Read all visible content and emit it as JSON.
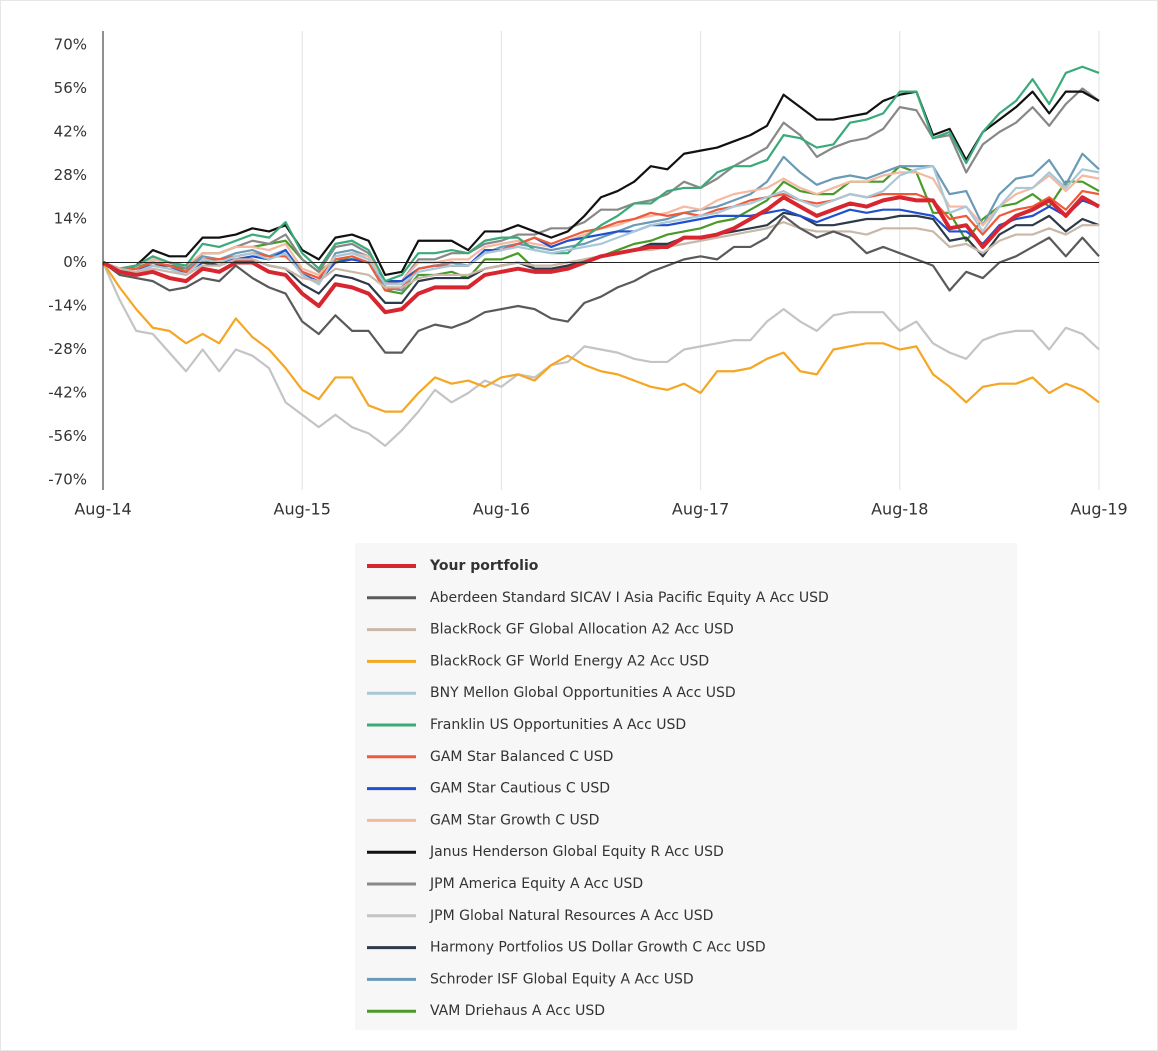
{
  "chart_data": {
    "type": "line",
    "categories": [
      "Aug-14",
      null,
      null,
      null,
      null,
      null,
      null,
      null,
      null,
      null,
      null,
      null,
      "Aug-15",
      null,
      null,
      null,
      null,
      null,
      null,
      null,
      null,
      null,
      null,
      null,
      "Aug-16",
      null,
      null,
      null,
      null,
      null,
      null,
      null,
      null,
      null,
      null,
      null,
      "Aug-17",
      null,
      null,
      null,
      null,
      null,
      null,
      null,
      null,
      null,
      null,
      null,
      "Aug-18",
      null,
      null,
      null,
      null,
      null,
      null,
      null,
      null,
      null,
      null,
      null,
      "Aug-19"
    ],
    "ylim": [
      -70,
      70
    ],
    "yticks": [
      {
        "value": -70,
        "label": "-70%"
      },
      {
        "value": -56,
        "label": "-56%"
      },
      {
        "value": -42,
        "label": "-42%"
      },
      {
        "value": -28,
        "label": "-28%"
      },
      {
        "value": -14,
        "label": "-14%"
      },
      {
        "value": 0,
        "label": "0%"
      },
      {
        "value": 14,
        "label": "14%"
      },
      {
        "value": 28,
        "label": "28%"
      },
      {
        "value": 42,
        "label": "42%"
      },
      {
        "value": 56,
        "label": "56%"
      },
      {
        "value": 70,
        "label": "70%"
      }
    ],
    "grid": true,
    "series": [
      {
        "name": "Your portfolio",
        "color": "#d7262f",
        "values": [
          0,
          -3,
          -4,
          -3,
          -5,
          -6,
          -2,
          -3,
          0,
          0,
          -3,
          -4,
          -10,
          -14,
          -7,
          -8,
          -10,
          -16,
          -15,
          -10,
          -8,
          -8,
          -8,
          -4,
          -3,
          -2,
          -3,
          -3,
          -2,
          0,
          2,
          3,
          4,
          5,
          5,
          8,
          8,
          9,
          11,
          14,
          17,
          21,
          18,
          15,
          17,
          19,
          18,
          20,
          21,
          20,
          20,
          11,
          12,
          5,
          11,
          15,
          17,
          20,
          15,
          21,
          18
        ]
      },
      {
        "name": "Aberdeen Standard SICAV I Asia Pacific Equity A Acc USD",
        "color": "#5a5a5a",
        "values": [
          0,
          -4,
          -5,
          -6,
          -9,
          -8,
          -5,
          -6,
          -1,
          -5,
          -8,
          -10,
          -19,
          -23,
          -17,
          -22,
          -22,
          -29,
          -29,
          -22,
          -20,
          -21,
          -19,
          -16,
          -15,
          -14,
          -15,
          -18,
          -19,
          -13,
          -11,
          -8,
          -6,
          -3,
          -1,
          1,
          2,
          1,
          5,
          5,
          8,
          15,
          11,
          8,
          10,
          8,
          3,
          5,
          3,
          1,
          -1,
          -9,
          -3,
          -5,
          0,
          2,
          5,
          8,
          2,
          8,
          2
        ]
      },
      {
        "name": "BlackRock GF Global Allocation A2 Acc USD",
        "color": "#c9b8a8",
        "values": [
          0,
          -2,
          -3,
          -2,
          -3,
          -4,
          -1,
          -1,
          1,
          1,
          -1,
          -2,
          -5,
          -6,
          -2,
          -3,
          -4,
          -8,
          -8,
          -5,
          -4,
          -4,
          -4,
          -2,
          -1,
          0,
          -1,
          -1,
          0,
          1,
          2,
          3,
          4,
          4,
          5,
          6,
          7,
          8,
          9,
          10,
          11,
          13,
          11,
          10,
          10,
          10,
          9,
          11,
          11,
          11,
          10,
          5,
          6,
          3,
          7,
          9,
          9,
          11,
          9,
          12,
          12
        ]
      },
      {
        "name": "BlackRock GF World Energy A2 Acc USD",
        "color": "#f5a623",
        "values": [
          0,
          -8,
          -15,
          -21,
          -22,
          -26,
          -23,
          -26,
          -18,
          -24,
          -28,
          -34,
          -41,
          -44,
          -37,
          -37,
          -46,
          -48,
          -48,
          -42,
          -37,
          -39,
          -38,
          -40,
          -37,
          -36,
          -38,
          -33,
          -30,
          -33,
          -35,
          -36,
          -38,
          -40,
          -41,
          -39,
          -42,
          -35,
          -35,
          -34,
          -31,
          -29,
          -35,
          -36,
          -28,
          -27,
          -26,
          -26,
          -28,
          -27,
          -36,
          -40,
          -45,
          -40,
          -39,
          -39,
          -37,
          -42,
          -39,
          -41,
          -45
        ]
      },
      {
        "name": "BNY Mellon Global Opportunities A Acc USD",
        "color": "#a8c8d8",
        "values": [
          0,
          -2,
          -3,
          -1,
          -2,
          -4,
          1,
          0,
          2,
          3,
          1,
          3,
          -4,
          -7,
          2,
          3,
          1,
          -7,
          -7,
          -3,
          -2,
          -1,
          -1,
          3,
          4,
          5,
          4,
          3,
          4,
          5,
          6,
          8,
          10,
          12,
          13,
          14,
          15,
          16,
          18,
          19,
          21,
          23,
          20,
          18,
          20,
          22,
          21,
          23,
          28,
          30,
          31,
          16,
          18,
          10,
          18,
          24,
          24,
          29,
          24,
          30,
          29
        ]
      },
      {
        "name": "Franklin US Opportunities A Acc USD",
        "color": "#3aaa7a",
        "values": [
          0,
          -2,
          -1,
          2,
          0,
          -1,
          6,
          5,
          7,
          9,
          8,
          13,
          3,
          -2,
          6,
          7,
          4,
          -6,
          -4,
          3,
          3,
          4,
          3,
          7,
          8,
          8,
          4,
          3,
          3,
          8,
          12,
          15,
          19,
          19,
          23,
          24,
          24,
          29,
          31,
          31,
          33,
          41,
          40,
          37,
          38,
          45,
          46,
          48,
          55,
          55,
          40,
          42,
          32,
          42,
          48,
          52,
          59,
          51,
          61,
          63,
          61
        ]
      },
      {
        "name": "GAM Star Balanced C USD",
        "color": "#f05a3a",
        "values": [
          0,
          -2,
          -2,
          0,
          -1,
          -3,
          1,
          1,
          2,
          3,
          2,
          2,
          -3,
          -5,
          1,
          2,
          0,
          -9,
          -8,
          -2,
          -1,
          -1,
          -1,
          3,
          4,
          6,
          8,
          6,
          8,
          10,
          11,
          13,
          14,
          16,
          15,
          16,
          15,
          17,
          18,
          20,
          21,
          22,
          20,
          19,
          20,
          22,
          21,
          22,
          22,
          22,
          20,
          14,
          15,
          9,
          15,
          17,
          18,
          21,
          17,
          23,
          22
        ]
      },
      {
        "name": "GAM Star Cautious C USD",
        "color": "#2050d0",
        "values": [
          0,
          -2,
          -2,
          -1,
          -2,
          -3,
          0,
          0,
          1,
          2,
          1,
          4,
          -4,
          -6,
          0,
          1,
          0,
          -6,
          -6,
          -2,
          -1,
          -1,
          -1,
          4,
          4,
          6,
          8,
          5,
          7,
          8,
          9,
          10,
          10,
          12,
          12,
          13,
          14,
          15,
          15,
          15,
          16,
          17,
          15,
          13,
          15,
          17,
          16,
          17,
          17,
          16,
          15,
          10,
          10,
          6,
          12,
          14,
          15,
          18,
          15,
          20,
          18
        ]
      },
      {
        "name": "GAM Star Growth C USD",
        "color": "#f5b8a0",
        "values": [
          0,
          -2,
          -1,
          1,
          0,
          -1,
          3,
          3,
          5,
          5,
          4,
          6,
          -2,
          -4,
          2,
          3,
          2,
          -6,
          -6,
          0,
          0,
          1,
          1,
          5,
          6,
          7,
          6,
          5,
          7,
          9,
          11,
          12,
          14,
          15,
          16,
          18,
          17,
          20,
          22,
          23,
          24,
          27,
          24,
          22,
          24,
          26,
          26,
          28,
          29,
          29,
          27,
          18,
          18,
          12,
          18,
          22,
          24,
          28,
          23,
          28,
          27
        ]
      },
      {
        "name": "Janus Henderson Global Equity R Acc USD",
        "color": "#111111",
        "values": [
          0,
          -2,
          -1,
          4,
          2,
          2,
          8,
          8,
          9,
          11,
          10,
          12,
          4,
          1,
          8,
          9,
          7,
          -4,
          -3,
          7,
          7,
          7,
          4,
          10,
          10,
          12,
          10,
          8,
          10,
          15,
          21,
          23,
          26,
          31,
          30,
          35,
          36,
          37,
          39,
          41,
          44,
          54,
          50,
          46,
          46,
          47,
          48,
          52,
          54,
          55,
          41,
          43,
          33,
          42,
          46,
          50,
          55,
          48,
          55,
          55,
          52
        ]
      },
      {
        "name": "JPM America Equity A Acc USD",
        "color": "#888888",
        "values": [
          0,
          -2,
          -1,
          1,
          0,
          -2,
          3,
          3,
          5,
          7,
          6,
          9,
          1,
          -3,
          5,
          6,
          3,
          -7,
          -6,
          1,
          1,
          3,
          3,
          6,
          7,
          9,
          9,
          11,
          11,
          13,
          17,
          17,
          19,
          20,
          22,
          26,
          24,
          27,
          31,
          34,
          37,
          45,
          41,
          34,
          37,
          39,
          40,
          43,
          50,
          49,
          40,
          41,
          29,
          38,
          42,
          45,
          50,
          44,
          51,
          56,
          52
        ]
      },
      {
        "name": "JPM Global Natural Resources A Acc USD",
        "color": "#c4c4c4",
        "values": [
          0,
          -12,
          -22,
          -23,
          -29,
          -35,
          -28,
          -35,
          -28,
          -30,
          -34,
          -45,
          -49,
          -53,
          -49,
          -53,
          -55,
          -59,
          -54,
          -48,
          -41,
          -45,
          -42,
          -38,
          -40,
          -36,
          -37,
          -33,
          -32,
          -27,
          -28,
          -29,
          -31,
          -32,
          -32,
          -28,
          -27,
          -26,
          -25,
          -25,
          -19,
          -15,
          -19,
          -22,
          -17,
          -16,
          -16,
          -16,
          -22,
          -19,
          -26,
          -29,
          -31,
          -25,
          -23,
          -22,
          -22,
          -28,
          -21,
          -23,
          -28
        ]
      },
      {
        "name": "Harmony Portfolios US Dollar Growth C Acc USD",
        "color": "#2d3a4a",
        "values": [
          0,
          -3,
          -3,
          -1,
          -1,
          -3,
          0,
          -1,
          1,
          1,
          -1,
          -2,
          -7,
          -10,
          -4,
          -5,
          -7,
          -13,
          -13,
          -6,
          -5,
          -5,
          -5,
          -2,
          -1,
          0,
          -2,
          -2,
          -1,
          0,
          2,
          3,
          4,
          6,
          6,
          8,
          8,
          9,
          10,
          11,
          12,
          16,
          15,
          12,
          12,
          13,
          14,
          14,
          15,
          15,
          14,
          7,
          8,
          2,
          9,
          12,
          12,
          15,
          10,
          14,
          12
        ]
      },
      {
        "name": "Schroder ISF Global Equity A Acc USD",
        "color": "#6a9ab5",
        "values": [
          0,
          -2,
          -2,
          0,
          -1,
          -3,
          2,
          1,
          3,
          4,
          2,
          4,
          -3,
          -7,
          3,
          4,
          2,
          -8,
          -9,
          -2,
          -1,
          0,
          -1,
          3,
          5,
          6,
          5,
          4,
          5,
          6,
          8,
          10,
          12,
          13,
          14,
          16,
          17,
          18,
          20,
          22,
          26,
          34,
          29,
          25,
          27,
          28,
          27,
          29,
          31,
          31,
          31,
          22,
          23,
          12,
          22,
          27,
          28,
          33,
          25,
          35,
          30
        ]
      },
      {
        "name": "VAM Driehaus A Acc USD",
        "color": "#4a9a2a",
        "values": [
          0,
          -3,
          -1,
          0,
          -1,
          -2,
          3,
          3,
          5,
          5,
          6,
          7,
          1,
          -3,
          1,
          1,
          0,
          -9,
          -10,
          -4,
          -4,
          -3,
          -5,
          1,
          1,
          3,
          -2,
          -2,
          -1,
          1,
          2,
          4,
          6,
          7,
          9,
          10,
          11,
          13,
          14,
          17,
          20,
          26,
          23,
          22,
          22,
          26,
          26,
          26,
          31,
          29,
          16,
          16,
          7,
          14,
          18,
          19,
          22,
          18,
          26,
          26,
          23
        ]
      }
    ]
  }
}
